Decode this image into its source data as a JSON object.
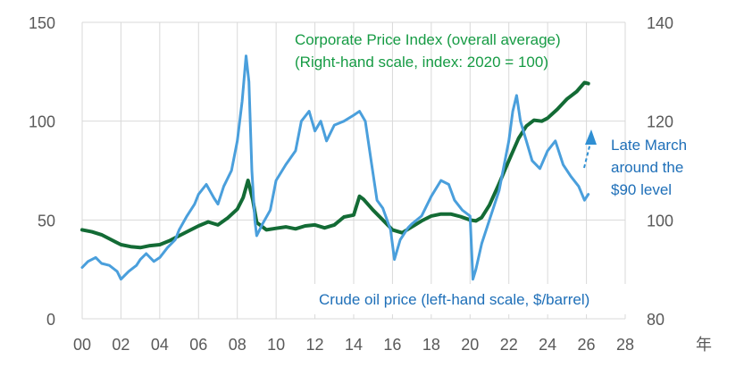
{
  "chart_data": {
    "type": "line",
    "x_unit_label": "年",
    "x_ticks": [
      "00",
      "02",
      "04",
      "06",
      "08",
      "10",
      "12",
      "14",
      "16",
      "18",
      "20",
      "22",
      "24",
      "26",
      "28"
    ],
    "xlim": [
      2000,
      2028
    ],
    "left_axis": {
      "ylim": [
        0,
        150
      ],
      "ticks": [
        "0",
        "50",
        "100",
        "150"
      ]
    },
    "right_axis": {
      "ylim": [
        80,
        140
      ],
      "ticks": [
        "80",
        "100",
        "120",
        "140"
      ]
    },
    "grid": true,
    "colors": {
      "oil": "#4a9fdc",
      "cpi": "#136b35",
      "cpi_label": "#169b44",
      "oil_label": "#1e6fb8",
      "annotation": "#2f8fd3"
    },
    "series": [
      {
        "name": "Corporate Price Index (overall average)",
        "axis": "right",
        "label_lines": [
          "Corporate Price Index (overall average)",
          "(Right-hand scale, index: 2020 = 100)"
        ],
        "x": [
          2000,
          2000.5,
          2001,
          2001.5,
          2002,
          2002.5,
          2003,
          2003.5,
          2004,
          2004.5,
          2005,
          2005.5,
          2006,
          2006.5,
          2007,
          2007.5,
          2008,
          2008.3,
          2008.55,
          2008.8,
          2009,
          2009.5,
          2010,
          2010.5,
          2011,
          2011.5,
          2012,
          2012.5,
          2013,
          2013.5,
          2014,
          2014.3,
          2014.5,
          2015,
          2015.5,
          2016,
          2016.5,
          2017,
          2017.5,
          2018,
          2018.5,
          2019,
          2019.5,
          2020,
          2020.3,
          2020.6,
          2021,
          2021.5,
          2022,
          2022.5,
          2022.9,
          2023.3,
          2023.7,
          2024,
          2024.5,
          2025,
          2025.5,
          2025.9,
          2026.1
        ],
        "values": [
          98.0,
          97.6,
          97.0,
          96.0,
          95.0,
          94.6,
          94.4,
          94.8,
          95.0,
          95.8,
          96.8,
          97.8,
          98.8,
          99.6,
          99.0,
          100.4,
          102.2,
          104.5,
          108.0,
          104.0,
          99.5,
          98.0,
          98.3,
          98.6,
          98.2,
          98.8,
          99.0,
          98.4,
          99.0,
          100.6,
          101.0,
          104.8,
          104.2,
          102.0,
          100.0,
          98.0,
          97.4,
          98.6,
          99.8,
          100.8,
          101.2,
          101.2,
          100.7,
          100.0,
          99.8,
          100.5,
          103.0,
          107.4,
          112.0,
          116.5,
          119.0,
          120.2,
          120.0,
          120.6,
          122.4,
          124.5,
          126.0,
          127.8,
          127.6
        ]
      },
      {
        "name": "Crude oil price",
        "axis": "left",
        "label_lines": [
          "Crude oil price (left-hand scale, $/barrel)"
        ],
        "x": [
          2000,
          2000.3,
          2000.7,
          2001,
          2001.4,
          2001.8,
          2002,
          2002.4,
          2002.8,
          2003,
          2003.3,
          2003.7,
          2004,
          2004.4,
          2004.8,
          2005,
          2005.4,
          2005.8,
          2006,
          2006.4,
          2006.8,
          2007,
          2007.3,
          2007.7,
          2008,
          2008.25,
          2008.45,
          2008.6,
          2008.75,
          2008.9,
          2009,
          2009.3,
          2009.7,
          2010,
          2010.5,
          2011,
          2011.3,
          2011.7,
          2012,
          2012.3,
          2012.6,
          2013,
          2013.5,
          2014,
          2014.3,
          2014.6,
          2014.9,
          2015.2,
          2015.5,
          2015.9,
          2016.1,
          2016.4,
          2016.8,
          2017,
          2017.5,
          2018,
          2018.5,
          2018.9,
          2019.2,
          2019.6,
          2020,
          2020.15,
          2020.3,
          2020.6,
          2021,
          2021.5,
          2022,
          2022.2,
          2022.4,
          2022.6,
          2022.9,
          2023.2,
          2023.6,
          2024,
          2024.4,
          2024.8,
          2025.2,
          2025.6,
          2025.9,
          2026.1
        ],
        "values": [
          26,
          29,
          31,
          28,
          27,
          24,
          20,
          24,
          27,
          30,
          33,
          29,
          31,
          36,
          40,
          45,
          52,
          58,
          63,
          68,
          61,
          58,
          67,
          75,
          90,
          110,
          133,
          120,
          75,
          50,
          42,
          48,
          55,
          70,
          78,
          85,
          100,
          105,
          95,
          100,
          90,
          98,
          100,
          103,
          105,
          100,
          80,
          60,
          56,
          45,
          30,
          40,
          46,
          48,
          52,
          62,
          70,
          68,
          60,
          55,
          52,
          20,
          25,
          38,
          50,
          65,
          90,
          105,
          113,
          100,
          90,
          80,
          76,
          85,
          90,
          78,
          72,
          67,
          60,
          63
        ]
      }
    ],
    "annotations": [
      {
        "lines": [
          "Late March",
          "around the",
          "$90 level"
        ]
      }
    ]
  }
}
